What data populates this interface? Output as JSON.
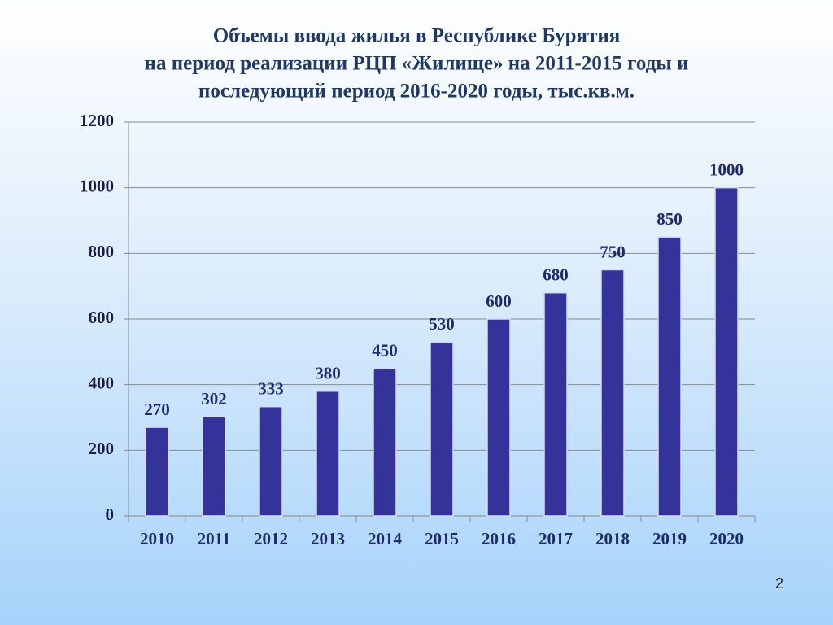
{
  "chart_data": {
    "type": "bar",
    "title": [
      "Объемы ввода жилья в Республике Бурятия",
      "на период реализации РЦП «Жилище» на 2011-2015 годы и",
      "последующий период 2016-2020 годы, тыс.кв.м."
    ],
    "categories": [
      "2010",
      "2011",
      "2012",
      "2013",
      "2014",
      "2015",
      "2016",
      "2017",
      "2018",
      "2019",
      "2020"
    ],
    "values": [
      270,
      302,
      333,
      380,
      450,
      530,
      600,
      680,
      750,
      850,
      1000
    ],
    "color": "#333399",
    "ylim": [
      0,
      1200
    ],
    "yticks": [
      0,
      200,
      400,
      600,
      800,
      1000,
      1200
    ],
    "grid": true
  },
  "page_number": "2"
}
